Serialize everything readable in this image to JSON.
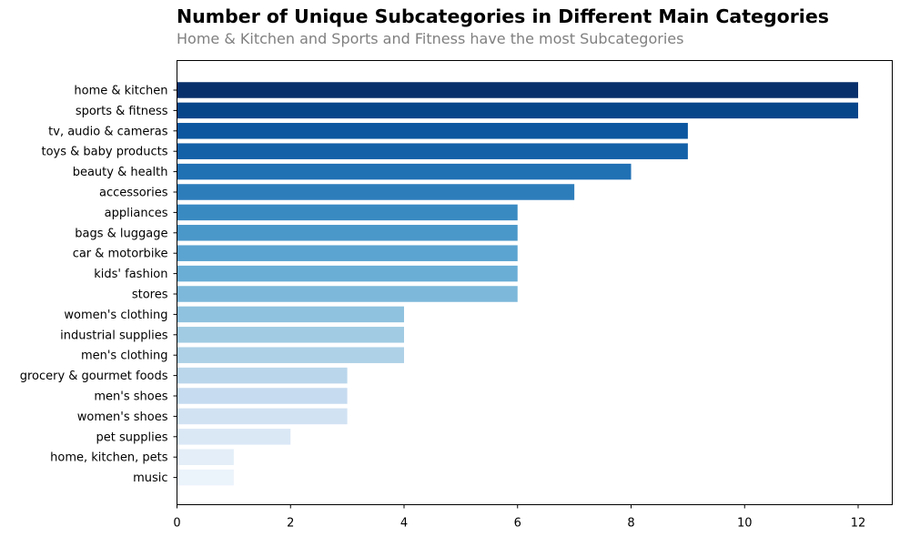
{
  "chart_data": {
    "type": "bar",
    "orientation": "horizontal",
    "title": "Number of Unique Subcategories in Different Main Categories",
    "subtitle": "Home & Kitchen and Sports and Fitness have the most Subcategories",
    "xlabel": "",
    "ylabel": "",
    "xlim": [
      0,
      12.6
    ],
    "xticks": [
      0,
      2,
      4,
      6,
      8,
      10,
      12
    ],
    "grid": false,
    "colormap": "Blues",
    "categories": [
      "home & kitchen",
      "sports & fitness",
      "tv, audio & cameras",
      "toys & baby products",
      "beauty & health",
      "accessories",
      "appliances",
      "bags & luggage",
      "car & motorbike",
      "kids' fashion",
      "stores",
      "women's clothing",
      "industrial supplies",
      "men's clothing",
      "grocery & gourmet foods",
      "men's shoes",
      "women's shoes",
      "pet supplies",
      "home, kitchen, pets",
      "music"
    ],
    "values": [
      12,
      12,
      9,
      9,
      8,
      7,
      6,
      6,
      6,
      6,
      6,
      4,
      4,
      4,
      3,
      3,
      3,
      2,
      1,
      1
    ],
    "colors": [
      "#08306b",
      "#08468a",
      "#0b569f",
      "#1461a8",
      "#2070b4",
      "#2d7dbb",
      "#3a8ac2",
      "#4a97c9",
      "#5ba3d0",
      "#6aaed6",
      "#7db8da",
      "#8fc2de",
      "#a0cbe2",
      "#aed1e7",
      "#bad6eb",
      "#c6dbef",
      "#d1e2f3",
      "#dae8f6",
      "#e3eef8",
      "#ebf3fb"
    ]
  }
}
